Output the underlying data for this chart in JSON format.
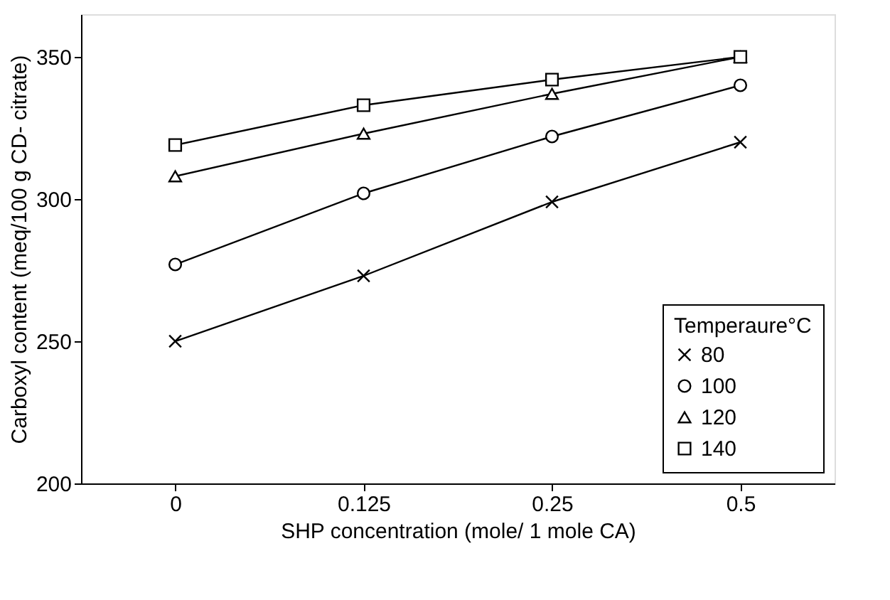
{
  "chart_data": {
    "type": "line",
    "xlabel": "SHP concentration (mole/ 1 mole CA)",
    "ylabel": "Carboxyl content (meq/100 g CD- citrate)",
    "legend_title": "Temperaure°C",
    "categories": [
      "0",
      "0.125",
      "0.25",
      "0.5"
    ],
    "series": [
      {
        "name": "80",
        "color": "#000000",
        "marker": "cross",
        "values": [
          250,
          273,
          299,
          320
        ]
      },
      {
        "name": "100",
        "color": "#000000",
        "marker": "circle",
        "values": [
          277,
          302,
          322,
          340
        ]
      },
      {
        "name": "120",
        "color": "#000000",
        "marker": "triangle",
        "values": [
          308,
          323,
          337,
          350
        ]
      },
      {
        "name": "140",
        "color": "#000000",
        "marker": "square",
        "values": [
          319,
          333,
          342,
          350
        ]
      }
    ],
    "ylim": [
      200,
      365
    ],
    "yticks": [
      200,
      250,
      300,
      350
    ],
    "grid": false,
    "legend": "bottom right",
    "line_style": "solid"
  }
}
